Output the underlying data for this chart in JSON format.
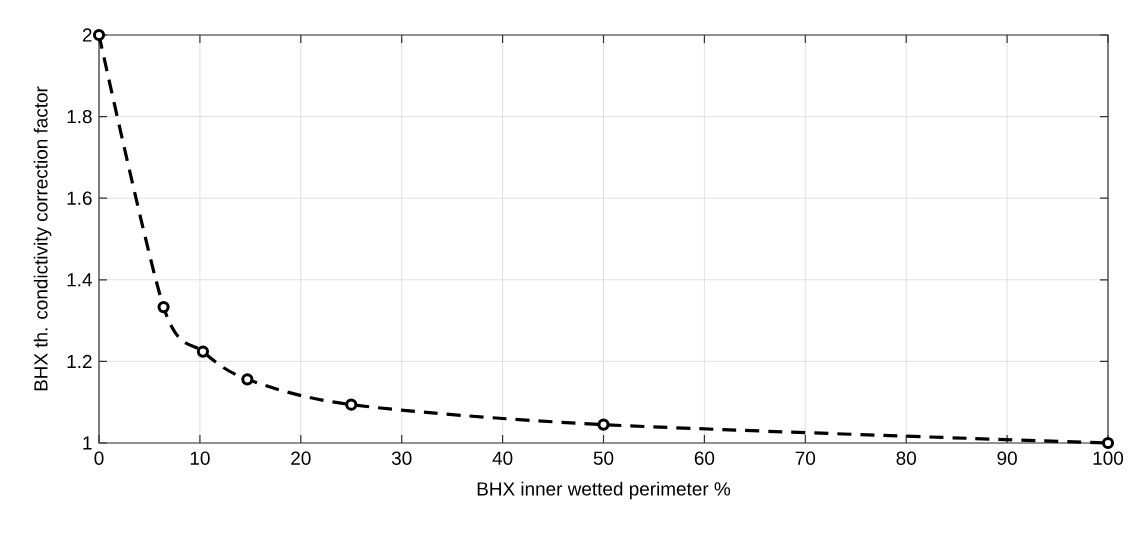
{
  "chart_data": {
    "type": "line",
    "xlabel": "BHX inner wetted perimeter %",
    "ylabel": "BHX th. condictivity correction factor",
    "x": [
      0,
      6.4,
      10.3,
      14.7,
      25,
      50,
      100
    ],
    "series": [
      {
        "color": "#000000",
        "values": [
          2.0,
          1.333,
          1.224,
          1.156,
          1.094,
          1.045,
          1.0
        ]
      }
    ],
    "xlim": [
      0,
      100
    ],
    "xticks": [
      0,
      10,
      20,
      30,
      40,
      50,
      60,
      70,
      80,
      90,
      100
    ],
    "ylim": [
      1,
      2
    ],
    "yticks": [
      1,
      1.2,
      1.4,
      1.6,
      1.8,
      2
    ],
    "grid": true,
    "marker": "circle",
    "line_style": "dashed"
  }
}
